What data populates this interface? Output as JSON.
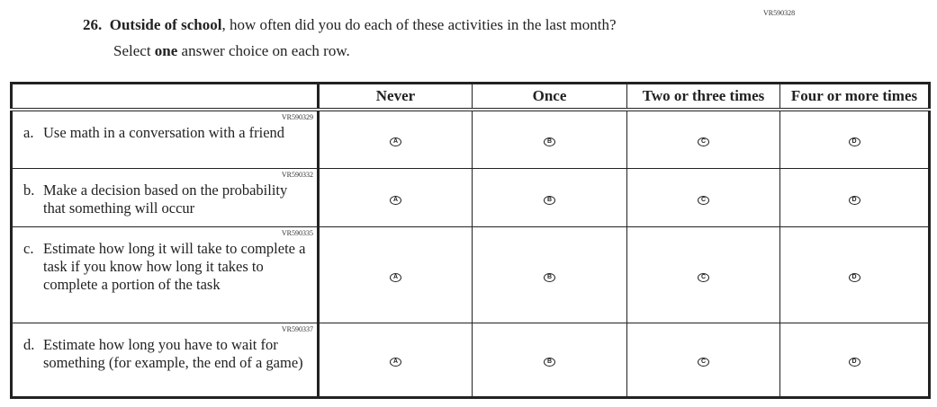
{
  "question": {
    "id": "VR590328",
    "number": "26.",
    "bold_part": "Outside of school",
    "rest": ", how often did you do each of these activities in the last month?",
    "instruction_pre": "Select ",
    "instruction_bold": "one",
    "instruction_post": " answer choice on each row."
  },
  "columns": [
    "Never",
    "Once",
    "Two or three times",
    "Four or more times"
  ],
  "choices": [
    "A",
    "B",
    "C",
    "D"
  ],
  "rows": [
    {
      "id": "VR590329",
      "letter": "a.",
      "text": "Use math in a conversation with a friend"
    },
    {
      "id": "VR590332",
      "letter": "b.",
      "text": "Make a decision based on the probability that something will occur"
    },
    {
      "id": "VR590335",
      "letter": "c.",
      "text": "Estimate how long it will take to complete a task if you know how long it takes to complete a portion of the task"
    },
    {
      "id": "VR590337",
      "letter": "d.",
      "text": "Estimate how long you have to wait for something (for example, the end of a game)"
    }
  ]
}
